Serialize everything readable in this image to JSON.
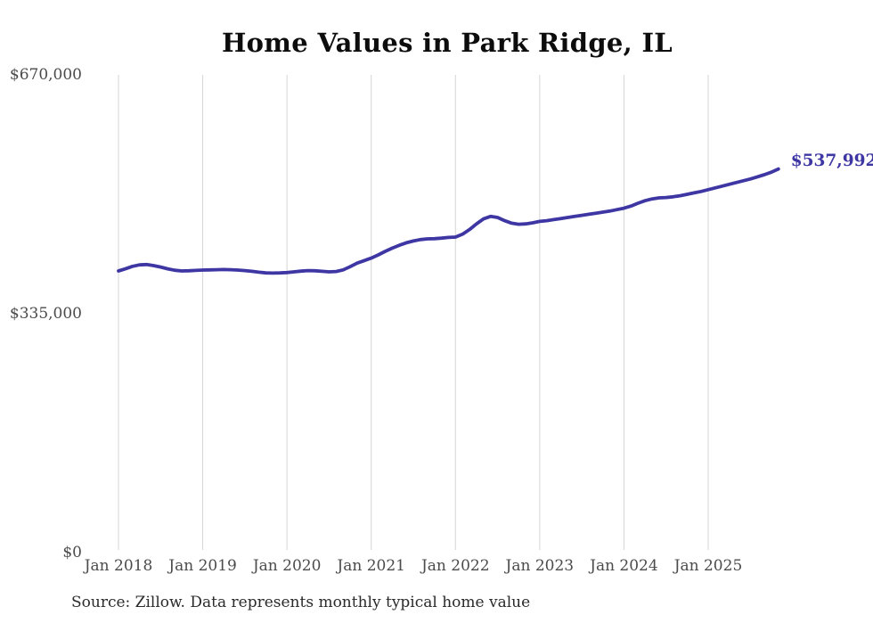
{
  "title": "Home Values in Park Ridge, IL",
  "source_note": "Source: Zillow. Data represents monthly typical home value",
  "colors": {
    "line": "#3d36a3",
    "grid": "#d5d5d5",
    "title_text": "#0d0d0d",
    "axis_text": "#4b4b4b",
    "source_text": "#2a2a2a",
    "background": "#ffffff"
  },
  "chart_data": {
    "type": "line",
    "title": "Home Values in Park Ridge, IL",
    "xlabel": "",
    "ylabel": "",
    "ylim": [
      0,
      670000
    ],
    "y_ticks": [
      {
        "value": 0,
        "label": "$0"
      },
      {
        "value": 335000,
        "label": "$335,000"
      },
      {
        "value": 670000,
        "label": "$670,000"
      }
    ],
    "x_ticks": [
      "Jan 2018",
      "Jan 2019",
      "Jan 2020",
      "Jan 2021",
      "Jan 2022",
      "Jan 2023",
      "Jan 2024",
      "Jan 2025"
    ],
    "x_tick_interval_months": 12,
    "start_month": "2018-01",
    "frequency": "monthly",
    "grid": "vertical-only",
    "legend": "none",
    "line_color": "#3d36a3",
    "annotation": {
      "text": "$537,992",
      "value": 537992,
      "position": "end-of-line"
    },
    "series": [
      {
        "name": "Monthly typical home value",
        "values": [
          395000,
          398000,
          401500,
          403500,
          404000,
          402500,
          400500,
          398000,
          396000,
          395000,
          395200,
          395800,
          396300,
          396500,
          396800,
          397000,
          396800,
          396300,
          395500,
          394500,
          393300,
          392300,
          392000,
          392200,
          392800,
          393800,
          394800,
          395500,
          395300,
          394500,
          393800,
          394300,
          396500,
          401000,
          406000,
          409500,
          413000,
          417500,
          422500,
          427000,
          431000,
          434500,
          437000,
          439000,
          440000,
          440300,
          441000,
          442000,
          442500,
          446500,
          453000,
          461000,
          468000,
          471500,
          470000,
          465500,
          462000,
          460500,
          461000,
          462500,
          464500,
          465500,
          467000,
          468500,
          470000,
          471500,
          473000,
          474500,
          476000,
          477500,
          479000,
          481000,
          483000,
          486000,
          490000,
          493500,
          496000,
          497500,
          498000,
          499000,
          500500,
          502500,
          504500,
          506500,
          509000,
          511500,
          514000,
          516500,
          519000,
          521500,
          524000,
          527000,
          530000,
          533500,
          537992
        ]
      }
    ]
  }
}
